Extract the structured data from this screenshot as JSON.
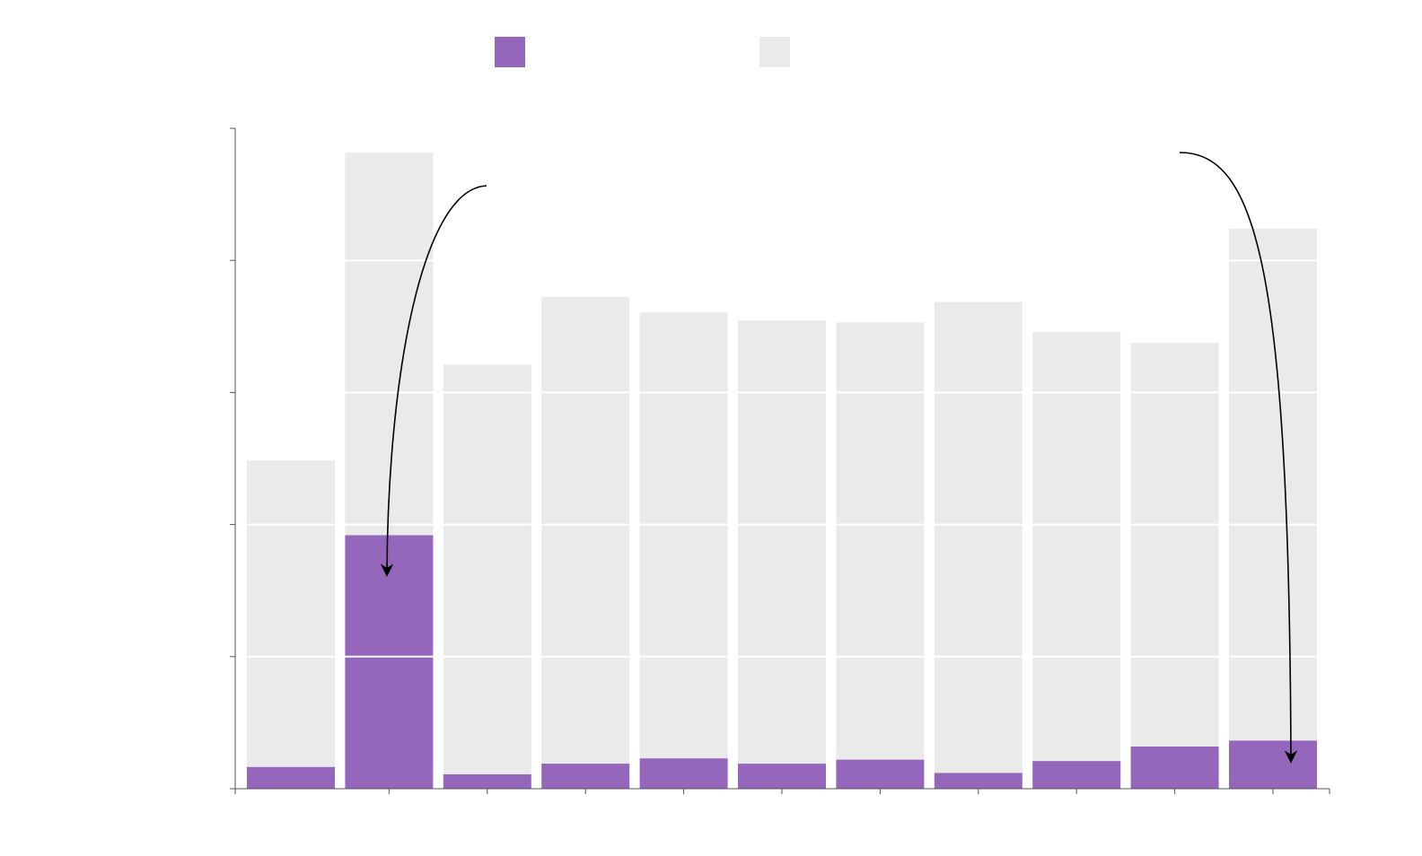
{
  "chart_data": {
    "type": "bar",
    "stacked": true,
    "title": "",
    "xlabel": "",
    "ylabel": "",
    "ylim": [
      0,
      1000
    ],
    "y_ticks": [
      0,
      200,
      400,
      600,
      800,
      1000
    ],
    "categories": [
      "",
      "",
      "",
      "",
      "",
      "",
      "",
      "",
      "",
      "",
      ""
    ],
    "series": [
      {
        "color": "#9467bd",
        "values": [
          33,
          384,
          22,
          38,
          46,
          38,
          44,
          24,
          42,
          64,
          73
        ]
      },
      {
        "color": "#eaeaea",
        "values": [
          464,
          579,
          620,
          707,
          675,
          671,
          662,
          713,
          650,
          611,
          775
        ]
      }
    ],
    "legend": {
      "placement": "top",
      "entries": [
        "",
        ""
      ]
    },
    "grid": {
      "y": true,
      "color": "#ffffff"
    },
    "annotations": [
      {
        "from_bar": 1,
        "arrow": true,
        "text": ""
      },
      {
        "from_bar": 10,
        "arrow": true,
        "text": ""
      }
    ]
  }
}
